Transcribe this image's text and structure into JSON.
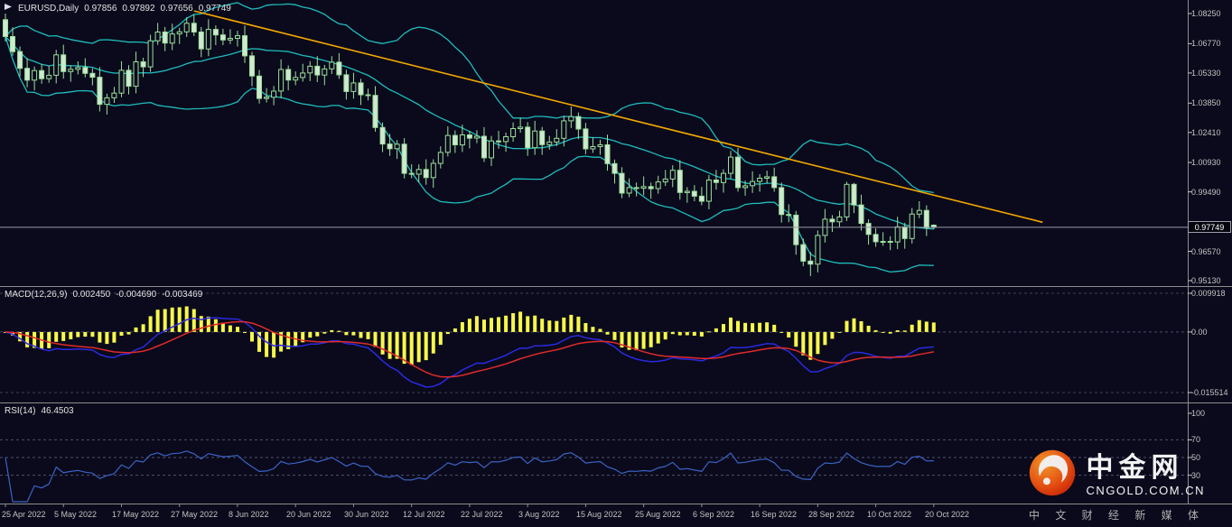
{
  "window": {
    "symbol_header": {
      "symbol": "EURUSD,Daily",
      "open": "0.97856",
      "high": "0.97892",
      "low": "0.97656",
      "close": "0.97749"
    }
  },
  "macd_header": {
    "title": "MACD(12,26,9)",
    "value_histogram": "0.002450",
    "value_main": "-0.004690",
    "value_signal": "-0.003469"
  },
  "rsi_header": {
    "title": "RSI(14)",
    "value": "46.4503"
  },
  "watermark": {
    "brand": "中金网",
    "domain": "CNGOLD.COM.CN",
    "tagline": "中 文 财 经 新 媒 体"
  },
  "colors": {
    "background": "#0a0a1c",
    "axis_text": "#c2c2c2",
    "grid": "#3f3f5c",
    "separator": "#8c8c8c",
    "candle": "#9ddf9d",
    "candle_bear_fill": "#cfe9cf",
    "bollinger": "#1fbdbd",
    "trendline": "#f5a800",
    "price_line": "#9a9aa6",
    "macd_histogram": "#f8f84a",
    "macd_line": "#2a2ae0",
    "macd_signal": "#e02a2a",
    "rsi": "#3b63c4",
    "logo_red": "#e8380d",
    "logo_orange": "#ff9e2a"
  },
  "chart_data": {
    "type": "candlestick",
    "symbol": "EURUSD",
    "timeframe": "Daily",
    "ylim": [
      0.9513,
      1.0825
    ],
    "price_axis_labels": [
      "1.08250",
      "1.06770",
      "1.05330",
      "1.03850",
      "1.02410",
      "1.00930",
      "0.99490",
      "0.96570",
      "0.95130"
    ],
    "current_price": 0.97749,
    "price_tag": "0.97749",
    "time_axis_labels": [
      {
        "text": "25 Apr 2022",
        "bar": 0
      },
      {
        "text": "5 May 2022",
        "bar": 8
      },
      {
        "text": "17 May 2022",
        "bar": 16
      },
      {
        "text": "27 May 2022",
        "bar": 24
      },
      {
        "text": "8 Jun 2022",
        "bar": 32
      },
      {
        "text": "20 Jun 2022",
        "bar": 40
      },
      {
        "text": "30 Jun 2022",
        "bar": 48
      },
      {
        "text": "12 Jul 2022",
        "bar": 56
      },
      {
        "text": "22 Jul 2022",
        "bar": 64
      },
      {
        "text": "3 Aug 2022",
        "bar": 72
      },
      {
        "text": "15 Aug 2022",
        "bar": 80
      },
      {
        "text": "25 Aug 2022",
        "bar": 88
      },
      {
        "text": "6 Sep 2022",
        "bar": 96
      },
      {
        "text": "16 Sep 2022",
        "bar": 104
      },
      {
        "text": "28 Sep 2022",
        "bar": 112
      },
      {
        "text": "10 Oct 2022",
        "bar": 120
      },
      {
        "text": "20 Oct 2022",
        "bar": 128
      }
    ],
    "ohlc": [
      [
        1.0795,
        1.0825,
        1.0687,
        1.0712
      ],
      [
        1.0712,
        1.0757,
        1.0618,
        1.0638
      ],
      [
        1.0638,
        1.0663,
        1.0516,
        1.0556
      ],
      [
        1.0556,
        1.0606,
        1.0463,
        1.0498
      ],
      [
        1.0498,
        1.0565,
        1.0448,
        1.0545
      ],
      [
        1.0545,
        1.0575,
        1.048,
        1.0505
      ],
      [
        1.0505,
        1.0567,
        1.0485,
        1.0522
      ],
      [
        1.0522,
        1.0647,
        1.0482,
        1.0622
      ],
      [
        1.0622,
        1.0672,
        1.0505,
        1.054
      ],
      [
        1.054,
        1.0571,
        1.049,
        1.0551
      ],
      [
        1.0551,
        1.059,
        1.0526,
        1.056
      ],
      [
        1.056,
        1.0605,
        1.0511,
        1.0531
      ],
      [
        1.0531,
        1.0556,
        1.0472,
        1.0512
      ],
      [
        1.0512,
        1.0562,
        1.0344,
        1.0379
      ],
      [
        1.0379,
        1.0431,
        1.0329,
        1.0411
      ],
      [
        1.0411,
        1.0464,
        1.0386,
        1.0434
      ],
      [
        1.0434,
        1.0591,
        1.0414,
        1.0546
      ],
      [
        1.0546,
        1.0571,
        1.0428,
        1.0468
      ],
      [
        1.0468,
        1.0638,
        1.0433,
        1.0588
      ],
      [
        1.0588,
        1.0608,
        1.0513,
        1.0563
      ],
      [
        1.0563,
        1.0721,
        1.0538,
        1.0691
      ],
      [
        1.0691,
        1.0779,
        1.0671,
        1.0734
      ],
      [
        1.0734,
        1.0759,
        1.064,
        1.068
      ],
      [
        1.068,
        1.0775,
        1.0645,
        1.0725
      ],
      [
        1.0725,
        1.0755,
        1.0675,
        1.0735
      ],
      [
        1.0735,
        1.0807,
        1.071,
        1.0777
      ],
      [
        1.0777,
        1.0822,
        1.0714,
        1.0734
      ],
      [
        1.0734,
        1.0759,
        1.0611,
        1.0651
      ],
      [
        1.0651,
        1.0797,
        1.0616,
        1.0747
      ],
      [
        1.0747,
        1.0767,
        1.067,
        1.072
      ],
      [
        1.072,
        1.075,
        1.067,
        1.0695
      ],
      [
        1.0695,
        1.0748,
        1.0675,
        1.0703
      ],
      [
        1.0703,
        1.0741,
        1.0663,
        1.0716
      ],
      [
        1.0716,
        1.0766,
        1.0582,
        1.0617
      ],
      [
        1.0617,
        1.0637,
        1.0468,
        1.0518
      ],
      [
        1.0518,
        1.0548,
        1.0383,
        1.0408
      ],
      [
        1.0408,
        1.0459,
        1.0388,
        1.0414
      ],
      [
        1.0414,
        1.0469,
        1.0374,
        1.0444
      ],
      [
        1.0444,
        1.06,
        1.0409,
        1.055
      ],
      [
        1.055,
        1.057,
        1.0448,
        1.0498
      ],
      [
        1.0498,
        1.0541,
        1.0473,
        1.0511
      ],
      [
        1.0511,
        1.0578,
        1.0491,
        1.0533
      ],
      [
        1.0533,
        1.0591,
        1.0493,
        1.0566
      ],
      [
        1.0566,
        1.0616,
        1.0488,
        1.0523
      ],
      [
        1.0523,
        1.0573,
        1.0473,
        1.0553
      ],
      [
        1.0553,
        1.0616,
        1.0528,
        1.0586
      ],
      [
        1.0586,
        1.0631,
        1.0504,
        1.0524
      ],
      [
        1.0524,
        1.0549,
        1.0402,
        1.0442
      ],
      [
        1.0442,
        1.0534,
        1.0407,
        1.0484
      ],
      [
        1.0484,
        1.0504,
        1.0376,
        1.0426
      ],
      [
        1.0426,
        1.0456,
        1.0398,
        1.0423
      ],
      [
        1.0423,
        1.0468,
        1.0245,
        1.0265
      ],
      [
        1.0265,
        1.029,
        1.0144,
        1.0184
      ],
      [
        1.0184,
        1.0234,
        1.0126,
        1.0161
      ],
      [
        1.0161,
        1.0203,
        1.0111,
        1.0183
      ],
      [
        1.0183,
        1.0213,
        1.0015,
        1.004
      ],
      [
        1.004,
        1.0085,
        1.0016,
        1.0036
      ],
      [
        1.0036,
        1.0084,
        0.9996,
        1.0059
      ],
      [
        1.0059,
        1.0109,
        0.9984,
        1.0019
      ],
      [
        1.0019,
        1.0109,
        0.9969,
        1.0089
      ],
      [
        1.0089,
        1.0173,
        1.0064,
        1.0143
      ],
      [
        1.0143,
        1.0271,
        1.0123,
        1.0226
      ],
      [
        1.0226,
        1.0251,
        1.014,
        1.018
      ],
      [
        1.018,
        1.0279,
        1.0145,
        1.0229
      ],
      [
        1.0229,
        1.0249,
        1.0163,
        1.0213
      ],
      [
        1.0213,
        1.0252,
        1.0188,
        1.0222
      ],
      [
        1.0222,
        1.0267,
        1.0096,
        1.0116
      ],
      [
        1.0116,
        1.0224,
        1.0076,
        1.0199
      ],
      [
        1.0199,
        1.0249,
        1.0161,
        1.0196
      ],
      [
        1.0196,
        1.024,
        1.0146,
        1.022
      ],
      [
        1.022,
        1.029,
        1.0195,
        1.026
      ],
      [
        1.026,
        1.0312,
        1.024,
        1.0267
      ],
      [
        1.0267,
        1.0292,
        1.0126,
        1.0166
      ],
      [
        1.0166,
        1.0298,
        1.0131,
        1.0248
      ],
      [
        1.0248,
        1.0268,
        1.0131,
        1.0181
      ],
      [
        1.0181,
        1.0224,
        1.0156,
        1.0194
      ],
      [
        1.0194,
        1.0257,
        1.0174,
        1.0212
      ],
      [
        1.0212,
        1.0323,
        1.0172,
        1.0298
      ],
      [
        1.0298,
        1.0369,
        1.0263,
        1.0319
      ],
      [
        1.0319,
        1.0339,
        1.0208,
        1.0258
      ],
      [
        1.0258,
        1.0288,
        1.0135,
        1.016
      ],
      [
        1.016,
        1.0216,
        1.014,
        1.0171
      ],
      [
        1.0171,
        1.0205,
        1.0131,
        1.018
      ],
      [
        1.018,
        1.023,
        1.0053,
        1.0088
      ],
      [
        1.0088,
        1.0108,
        0.999,
        1.004
      ],
      [
        1.004,
        1.007,
        0.9918,
        0.9943
      ],
      [
        0.9943,
        1.0015,
        0.9923,
        0.997
      ],
      [
        0.997,
        0.9995,
        0.9927,
        0.9967
      ],
      [
        0.9967,
        1.0025,
        0.9932,
        0.9975
      ],
      [
        0.9975,
        0.9995,
        0.9915,
        0.9965
      ],
      [
        0.9965,
        1.0028,
        0.994,
        0.9998
      ],
      [
        0.9998,
        1.0057,
        0.9978,
        1.0012
      ],
      [
        1.0012,
        1.008,
        0.9972,
        1.0055
      ],
      [
        1.0055,
        1.0105,
        0.9911,
        0.9946
      ],
      [
        0.9946,
        0.9972,
        0.9896,
        0.9952
      ],
      [
        0.9952,
        0.9982,
        0.9903,
        0.9928
      ],
      [
        0.9928,
        0.9973,
        0.9883,
        0.9903
      ],
      [
        0.9903,
        1.0032,
        0.9863,
        1.0007
      ],
      [
        1.0007,
        1.0057,
        0.996,
        0.9995
      ],
      [
        0.9995,
        1.006,
        0.9945,
        1.004
      ],
      [
        1.004,
        1.015,
        1.0015,
        1.012
      ],
      [
        1.012,
        1.0165,
        0.995,
        0.997
      ],
      [
        0.997,
        1.0004,
        0.993,
        0.9979
      ],
      [
        0.9979,
        1.005,
        0.9944,
        1.0
      ],
      [
        1.0,
        1.0036,
        0.995,
        1.0016
      ],
      [
        1.0016,
        1.0053,
        0.9991,
        1.0023
      ],
      [
        1.0023,
        1.0068,
        0.995,
        0.997
      ],
      [
        0.997,
        0.9995,
        0.9798,
        0.9838
      ],
      [
        0.9838,
        0.9888,
        0.98,
        0.9835
      ],
      [
        0.9835,
        0.9855,
        0.964,
        0.969
      ],
      [
        0.969,
        0.972,
        0.9584,
        0.9609
      ],
      [
        0.9609,
        0.9654,
        0.9535,
        0.9594
      ],
      [
        0.9594,
        0.976,
        0.9554,
        0.9735
      ],
      [
        0.9735,
        0.9865,
        0.97,
        0.9815
      ],
      [
        0.9815,
        0.9835,
        0.9752,
        0.9802
      ],
      [
        0.9802,
        0.9856,
        0.9777,
        0.9826
      ],
      [
        0.9826,
        0.9999,
        0.9806,
        0.9986
      ],
      [
        0.9986,
        0.9993,
        0.9845,
        0.9885
      ],
      [
        0.9885,
        0.9935,
        0.9759,
        0.9794
      ],
      [
        0.9794,
        0.9814,
        0.969,
        0.974
      ],
      [
        0.974,
        0.977,
        0.9679,
        0.9704
      ],
      [
        0.9704,
        0.9751,
        0.9684,
        0.9706
      ],
      [
        0.9706,
        0.9731,
        0.9663,
        0.9703
      ],
      [
        0.9703,
        0.9827,
        0.9668,
        0.9777
      ],
      [
        0.9777,
        0.9797,
        0.967,
        0.972
      ],
      [
        0.972,
        0.987,
        0.9695,
        0.984
      ],
      [
        0.984,
        0.9903,
        0.982,
        0.9858
      ],
      [
        0.9858,
        0.9883,
        0.9732,
        0.9772
      ],
      [
        0.97856,
        0.97892,
        0.97656,
        0.97749
      ]
    ],
    "overlays": {
      "bollinger_period": 20,
      "bollinger_deviation": 2,
      "trendline": {
        "from_bar": 26,
        "from_price": 1.0838,
        "to_bar": 143,
        "to_price": 0.98
      }
    },
    "macd": {
      "fast": 12,
      "slow": 26,
      "signal": 9,
      "axis_labels": [
        {
          "text": "0.009918",
          "value": 0.009918
        },
        {
          "text": "0.00",
          "value": 0
        },
        {
          "text": "-0.015514",
          "value": -0.015514
        }
      ]
    },
    "rsi": {
      "period": 14,
      "levels": [
        70,
        50,
        30
      ],
      "axis_labels": [
        {
          "text": "100",
          "value": 100
        },
        {
          "text": "70",
          "value": 70
        },
        {
          "text": "50",
          "value": 50
        },
        {
          "text": "30",
          "value": 30
        }
      ]
    }
  }
}
